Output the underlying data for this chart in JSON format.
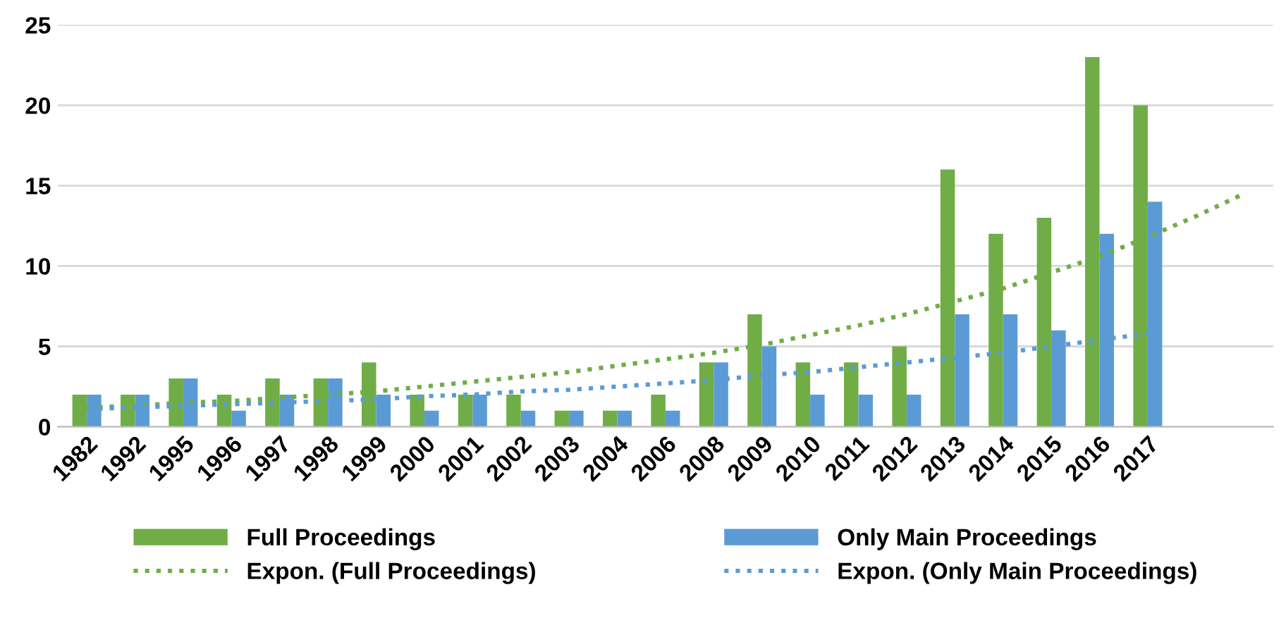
{
  "chart_data": {
    "type": "bar",
    "categories": [
      "1982",
      "1992",
      "1995",
      "1996",
      "1997",
      "1998",
      "1999",
      "2000",
      "2001",
      "2002",
      "2003",
      "2004",
      "2006",
      "2008",
      "2009",
      "2010",
      "2011",
      "2012",
      "2013",
      "2014",
      "2015",
      "2016",
      "2017",
      null,
      null
    ],
    "series": [
      {
        "name": "Full Proceedings",
        "color": "#70ad47",
        "values": [
          2,
          2,
          3,
          2,
          3,
          3,
          4,
          2,
          2,
          2,
          1,
          1,
          2,
          4,
          7,
          4,
          4,
          5,
          16,
          12,
          13,
          23,
          20,
          null,
          null
        ]
      },
      {
        "name": "Only Main Proceedings",
        "color": "#5b9bd5",
        "values": [
          2,
          2,
          3,
          1,
          2,
          3,
          2,
          1,
          2,
          1,
          1,
          1,
          1,
          4,
          5,
          2,
          2,
          2,
          7,
          7,
          6,
          12,
          14,
          null,
          null
        ]
      },
      {
        "name": "Expon. (Full Proceedings)",
        "type": "line",
        "color": "#70ad47",
        "line_style": "dotted",
        "values": [
          1.2,
          1.3,
          1.5,
          1.6,
          1.8,
          2.0,
          2.2,
          2.5,
          2.8,
          3.1,
          3.4,
          3.8,
          4.2,
          4.6,
          5.1,
          5.7,
          6.3,
          7.0,
          7.8,
          8.6,
          9.6,
          10.6,
          11.8,
          13.1,
          14.5
        ]
      },
      {
        "name": "Expon. (Only Main Proceedings)",
        "type": "line",
        "color": "#5b9bd5",
        "line_style": "dotted",
        "values": [
          1.1,
          1.2,
          1.3,
          1.4,
          1.5,
          1.6,
          1.7,
          1.9,
          2.0,
          2.2,
          2.3,
          2.5,
          2.7,
          2.9,
          3.2,
          3.4,
          3.7,
          4.0,
          4.3,
          4.6,
          5.0,
          5.4,
          5.8,
          null,
          null
        ]
      }
    ],
    "ylim": [
      0,
      25
    ],
    "yticks": [
      0,
      5,
      10,
      15,
      20,
      25
    ],
    "grid": "y",
    "legend": "bottom"
  }
}
